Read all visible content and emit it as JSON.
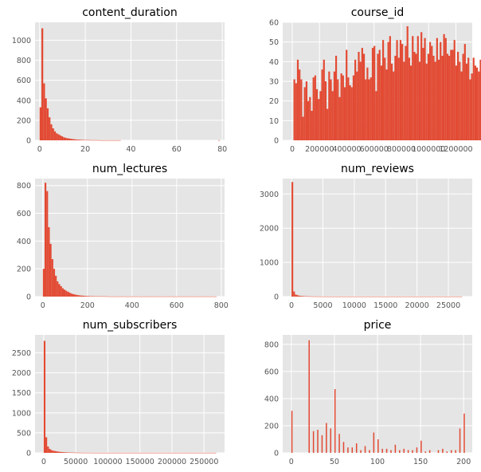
{
  "colors": {
    "bar": "#E24A33",
    "panel_bg": "#E5E5E5",
    "grid": "#FFFFFF",
    "tick_text": "#555555"
  },
  "chart_data": [
    {
      "type": "bar",
      "title": "content_duration",
      "xlim": [
        -2,
        81
      ],
      "ylim": [
        0,
        1180
      ],
      "xticks": [
        0,
        20,
        40,
        60,
        80
      ],
      "xtick_labels": [
        "0",
        "20",
        "40",
        "60",
        "80"
      ],
      "yticks": [
        0,
        200,
        400,
        600,
        800,
        1000
      ],
      "ytick_labels": [
        "0",
        "200",
        "400",
        "600",
        "800",
        "1000"
      ],
      "bin_width": 0.79,
      "bin_start": 0,
      "values": [
        330,
        1120,
        570,
        420,
        320,
        230,
        160,
        120,
        90,
        70,
        60,
        50,
        40,
        30,
        25,
        20,
        18,
        15,
        12,
        10,
        8,
        7,
        6,
        5,
        4,
        4,
        3,
        3,
        2,
        2,
        2,
        2,
        2,
        1,
        1,
        1,
        1,
        1,
        1,
        1,
        1,
        1,
        1,
        1,
        1,
        0,
        0,
        0,
        0,
        0,
        0,
        0,
        0,
        0,
        0,
        0,
        0,
        0,
        0,
        0,
        0,
        0,
        0,
        0,
        0,
        0,
        0,
        0,
        0,
        0,
        0,
        0,
        0,
        0,
        0,
        0,
        0,
        0,
        0,
        0,
        0,
        0,
        0,
        0,
        0,
        0,
        0,
        0,
        0,
        0,
        0,
        0,
        0,
        0,
        0,
        0,
        0,
        0,
        0,
        1
      ]
    },
    {
      "type": "bar",
      "title": "course_id",
      "xlim": [
        -70000,
        1320000
      ],
      "ylim": [
        0,
        60
      ],
      "xticks": [
        0,
        200000,
        400000,
        600000,
        800000,
        1000000,
        1200000
      ],
      "xtick_labels": [
        "0",
        "200000",
        "400000",
        "600000",
        "800000",
        "1000000",
        "1200000"
      ],
      "yticks": [
        0,
        10,
        20,
        30,
        40,
        50,
        60
      ],
      "ytick_labels": [
        "0",
        "10",
        "20",
        "30",
        "40",
        "50",
        "60"
      ],
      "bin_width": 12765,
      "bin_start": 9000,
      "values": [
        31,
        29,
        41,
        36,
        31,
        12,
        27,
        30,
        20,
        22,
        15,
        32,
        33,
        26,
        21,
        25,
        36,
        41,
        30,
        16,
        35,
        31,
        25,
        35,
        43,
        31,
        22,
        34,
        33,
        27,
        46,
        32,
        28,
        27,
        33,
        41,
        35,
        45,
        40,
        47,
        44,
        31,
        37,
        31,
        32,
        47,
        48,
        25,
        44,
        46,
        38,
        51,
        42,
        36,
        50,
        53,
        39,
        35,
        43,
        51,
        42,
        51,
        49,
        40,
        48,
        58,
        42,
        38,
        53,
        45,
        44,
        53,
        40,
        55,
        47,
        52,
        39,
        44,
        50,
        48,
        43,
        40,
        52,
        41,
        50,
        43,
        54,
        52,
        44,
        43,
        46,
        46,
        51,
        38,
        45,
        40,
        35,
        44,
        49,
        39,
        42,
        31,
        34,
        42,
        38,
        37,
        35,
        41,
        48,
        38,
        35,
        30,
        32,
        34,
        27,
        37,
        26,
        46,
        42,
        39,
        45,
        46,
        46,
        40,
        49,
        47,
        39,
        28,
        31,
        38,
        30,
        42,
        28,
        46,
        35,
        38,
        41,
        37,
        42,
        45,
        38,
        38,
        34,
        42,
        36,
        37,
        47,
        35,
        46,
        37,
        36,
        43,
        29,
        30,
        24,
        23,
        22,
        16,
        21,
        24,
        24,
        22,
        24
      ]
    },
    {
      "type": "bar",
      "title": "num_lectures",
      "xlim": [
        -35,
        815
      ],
      "ylim": [
        0,
        850
      ],
      "xticks": [
        0,
        200,
        400,
        600,
        800
      ],
      "xtick_labels": [
        "0",
        "200",
        "400",
        "600",
        "800"
      ],
      "yticks": [
        0,
        200,
        400,
        600,
        800
      ],
      "ytick_labels": [
        "0",
        "200",
        "400",
        "600",
        "800"
      ],
      "bin_width": 7.79,
      "bin_start": 0,
      "values": [
        200,
        820,
        760,
        500,
        380,
        270,
        200,
        150,
        110,
        90,
        75,
        60,
        50,
        42,
        35,
        28,
        22,
        18,
        15,
        12,
        10,
        8,
        7,
        6,
        5,
        4,
        4,
        3,
        3,
        3,
        2,
        2,
        2,
        2,
        2,
        2,
        2,
        1,
        1,
        1,
        1,
        1,
        1,
        1,
        1,
        1,
        1,
        1,
        1,
        1,
        1,
        1,
        1,
        1,
        1,
        1,
        1,
        1,
        1,
        1,
        1,
        1,
        1,
        1,
        1,
        1,
        1,
        1,
        1,
        1,
        1,
        1,
        1,
        1,
        1,
        1,
        1,
        1,
        1,
        1,
        1,
        1,
        1,
        1,
        1,
        1,
        1,
        1,
        1,
        1,
        1,
        1,
        1,
        1,
        1,
        1,
        1,
        1,
        1,
        1
      ]
    },
    {
      "type": "bar",
      "title": "num_reviews",
      "xlim": [
        -1400,
        28800
      ],
      "ylim": [
        0,
        3450
      ],
      "xticks": [
        0,
        5000,
        10000,
        15000,
        20000,
        25000
      ],
      "xtick_labels": [
        "0",
        "5000",
        "10000",
        "15000",
        "20000",
        "25000"
      ],
      "yticks": [
        0,
        1000,
        2000,
        3000
      ],
      "ytick_labels": [
        "0",
        "1000",
        "2000",
        "3000"
      ],
      "bin_width": 272,
      "bin_start": 0,
      "values": [
        3350,
        150,
        60,
        40,
        28,
        20,
        16,
        12,
        10,
        8,
        7,
        6,
        5,
        5,
        4,
        4,
        3,
        3,
        3,
        3,
        2,
        2,
        2,
        2,
        2,
        2,
        2,
        2,
        2,
        2,
        2,
        2,
        2,
        2,
        2,
        2,
        2,
        2,
        2,
        2,
        2,
        2,
        2,
        2,
        2,
        2,
        2,
        2,
        2,
        2,
        2,
        2,
        2,
        2,
        2,
        2,
        2,
        2,
        2,
        2,
        2,
        2,
        2,
        2,
        2,
        2,
        2,
        2,
        2,
        2,
        2,
        2,
        2,
        2,
        2,
        2,
        2,
        2,
        2,
        2,
        2,
        2,
        2,
        2,
        2,
        2,
        2,
        2,
        2,
        2,
        2,
        2,
        2,
        2,
        2,
        2,
        2,
        2,
        2,
        2
      ]
    },
    {
      "type": "bar",
      "title": "num_subscribers",
      "xlim": [
        -13500,
        282000
      ],
      "ylim": [
        0,
        2950
      ],
      "xticks": [
        0,
        50000,
        100000,
        150000,
        200000,
        250000
      ],
      "xtick_labels": [
        "0",
        "50000",
        "100000",
        "150000",
        "200000",
        "250000"
      ],
      "yticks": [
        0,
        500,
        1000,
        1500,
        2000,
        2500
      ],
      "ytick_labels": [
        "0",
        "500",
        "1000",
        "1500",
        "2000",
        "2500"
      ],
      "bin_width": 2690,
      "bin_start": 0,
      "values": [
        2800,
        390,
        160,
        100,
        70,
        55,
        45,
        38,
        30,
        25,
        20,
        17,
        14,
        12,
        10,
        9,
        8,
        7,
        6,
        5,
        5,
        4,
        4,
        3,
        3,
        3,
        3,
        2,
        2,
        2,
        2,
        2,
        2,
        2,
        2,
        2,
        2,
        2,
        2,
        2,
        2,
        2,
        2,
        2,
        2,
        2,
        2,
        2,
        2,
        2,
        2,
        2,
        2,
        2,
        2,
        2,
        2,
        2,
        2,
        2,
        2,
        2,
        2,
        2,
        2,
        2,
        2,
        2,
        2,
        2,
        2,
        2,
        2,
        2,
        2,
        2,
        2,
        2,
        2,
        2,
        2,
        2,
        2,
        2,
        2,
        2,
        2,
        2,
        2,
        2,
        2,
        2,
        2,
        2,
        2,
        2,
        2,
        2,
        2,
        2
      ]
    },
    {
      "type": "bar",
      "title": "price",
      "xlim": [
        -10,
        210
      ],
      "ylim": [
        0,
        870
      ],
      "xticks": [
        0,
        50,
        100,
        150,
        200
      ],
      "xtick_labels": [
        "0",
        "50",
        "100",
        "150",
        "200"
      ],
      "yticks": [
        0,
        200,
        400,
        600,
        800
      ],
      "ytick_labels": [
        "0",
        "200",
        "400",
        "600",
        "800"
      ],
      "bin_width": 1.4,
      "bins": [
        [
          0,
          310
        ],
        [
          20,
          830
        ],
        [
          25,
          160
        ],
        [
          30,
          170
        ],
        [
          35,
          130
        ],
        [
          40,
          220
        ],
        [
          45,
          180
        ],
        [
          50,
          470
        ],
        [
          55,
          140
        ],
        [
          60,
          80
        ],
        [
          65,
          40
        ],
        [
          70,
          40
        ],
        [
          75,
          70
        ],
        [
          80,
          20
        ],
        [
          85,
          50
        ],
        [
          90,
          20
        ],
        [
          95,
          150
        ],
        [
          100,
          100
        ],
        [
          105,
          30
        ],
        [
          110,
          30
        ],
        [
          115,
          20
        ],
        [
          120,
          60
        ],
        [
          125,
          20
        ],
        [
          130,
          30
        ],
        [
          135,
          20
        ],
        [
          140,
          20
        ],
        [
          145,
          40
        ],
        [
          150,
          90
        ],
        [
          155,
          10
        ],
        [
          160,
          20
        ],
        [
          170,
          20
        ],
        [
          175,
          30
        ],
        [
          180,
          10
        ],
        [
          185,
          20
        ],
        [
          190,
          20
        ],
        [
          195,
          180
        ],
        [
          200,
          290
        ]
      ]
    }
  ]
}
